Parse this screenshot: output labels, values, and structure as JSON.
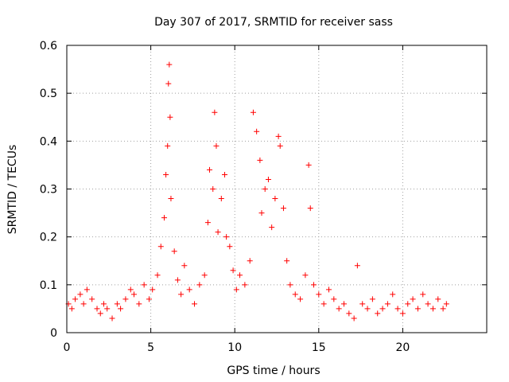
{
  "chart_data": {
    "type": "scatter",
    "title": "Day 307 of 2017, SRMTID for receiver sass",
    "xlabel": "GPS time / hours",
    "ylabel": "SRMTID / TECUs",
    "xlim": [
      0,
      25
    ],
    "ylim": [
      0,
      0.6
    ],
    "xticks": [
      0,
      5,
      10,
      15,
      20
    ],
    "xtick_labels": [
      "0",
      "5",
      "10",
      "15",
      "20"
    ],
    "yticks": [
      0,
      0.1,
      0.2,
      0.3,
      0.4,
      0.5,
      0.6
    ],
    "ytick_labels": [
      "0",
      "0.1",
      "0.2",
      "0.3",
      "0.4",
      "0.5",
      "0.6"
    ],
    "grid": true,
    "marker": "plus",
    "color": "#ff0000",
    "series": [
      {
        "name": "SRMTID",
        "x": [
          0.1,
          0.3,
          0.5,
          0.8,
          1.0,
          1.2,
          1.5,
          1.8,
          2.0,
          2.2,
          2.4,
          2.7,
          3.0,
          3.2,
          3.5,
          3.8,
          4.0,
          4.3,
          4.6,
          4.9,
          5.1,
          5.4,
          5.6,
          5.8,
          5.9,
          6.0,
          6.05,
          6.1,
          6.15,
          6.2,
          6.4,
          6.6,
          6.8,
          7.0,
          7.3,
          7.6,
          7.9,
          8.2,
          8.4,
          8.5,
          8.7,
          8.8,
          8.9,
          9.0,
          9.2,
          9.4,
          9.5,
          9.7,
          9.9,
          10.1,
          10.3,
          10.6,
          10.9,
          11.1,
          11.3,
          11.5,
          11.6,
          11.8,
          12.0,
          12.2,
          12.4,
          12.6,
          12.7,
          12.9,
          13.1,
          13.3,
          13.6,
          13.9,
          14.2,
          14.4,
          14.5,
          14.7,
          15.0,
          15.3,
          15.6,
          15.9,
          16.2,
          16.5,
          16.8,
          17.1,
          17.3,
          17.6,
          17.9,
          18.2,
          18.5,
          18.8,
          19.1,
          19.4,
          19.7,
          20.0,
          20.3,
          20.6,
          20.9,
          21.2,
          21.5,
          21.8,
          22.1,
          22.4,
          22.6
        ],
        "y": [
          0.06,
          0.05,
          0.07,
          0.08,
          0.06,
          0.09,
          0.07,
          0.05,
          0.04,
          0.06,
          0.05,
          0.03,
          0.06,
          0.05,
          0.07,
          0.09,
          0.08,
          0.06,
          0.1,
          0.07,
          0.09,
          0.12,
          0.18,
          0.24,
          0.33,
          0.39,
          0.52,
          0.56,
          0.45,
          0.28,
          0.17,
          0.11,
          0.08,
          0.14,
          0.09,
          0.06,
          0.1,
          0.12,
          0.23,
          0.34,
          0.3,
          0.46,
          0.39,
          0.21,
          0.28,
          0.33,
          0.2,
          0.18,
          0.13,
          0.09,
          0.12,
          0.1,
          0.15,
          0.46,
          0.42,
          0.36,
          0.25,
          0.3,
          0.32,
          0.22,
          0.28,
          0.41,
          0.39,
          0.26,
          0.15,
          0.1,
          0.08,
          0.07,
          0.12,
          0.35,
          0.26,
          0.1,
          0.08,
          0.06,
          0.09,
          0.07,
          0.05,
          0.06,
          0.04,
          0.03,
          0.14,
          0.06,
          0.05,
          0.07,
          0.04,
          0.05,
          0.06,
          0.08,
          0.05,
          0.04,
          0.06,
          0.07,
          0.05,
          0.08,
          0.06,
          0.05,
          0.07,
          0.05,
          0.06
        ]
      }
    ]
  }
}
